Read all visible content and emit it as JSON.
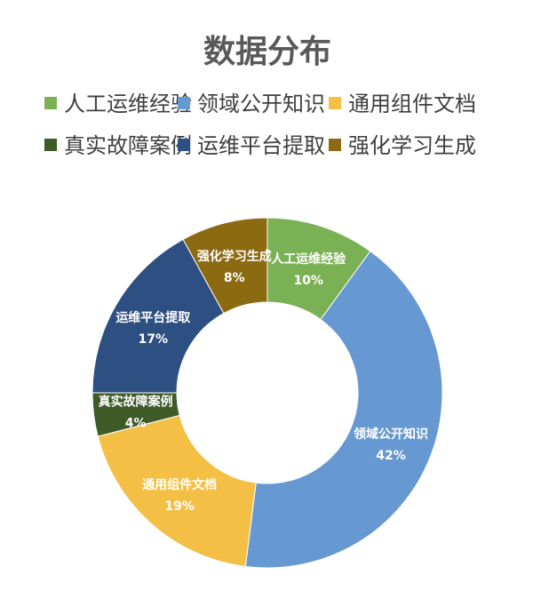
{
  "chart_data": {
    "type": "donut",
    "title": "数据分布",
    "legend_position": "top",
    "categories": [
      "人工运维经验",
      "领域公开知识",
      "通用组件文档",
      "真实故障案例",
      "运维平台提取",
      "强化学习生成"
    ],
    "values": [
      10,
      42,
      19,
      4,
      17,
      8
    ],
    "value_labels": [
      "10%",
      "42%",
      "19%",
      "4%",
      "17%",
      "8%"
    ],
    "colors": [
      "#70ad47",
      "#5b9bd5",
      "#ffc000",
      "#375623",
      "#264478",
      "#7f6000"
    ],
    "display_colors": [
      "#7bb155",
      "#6699d1",
      "#f4bf45",
      "#3d5a27",
      "#2e4f82",
      "#8c6a12"
    ]
  }
}
